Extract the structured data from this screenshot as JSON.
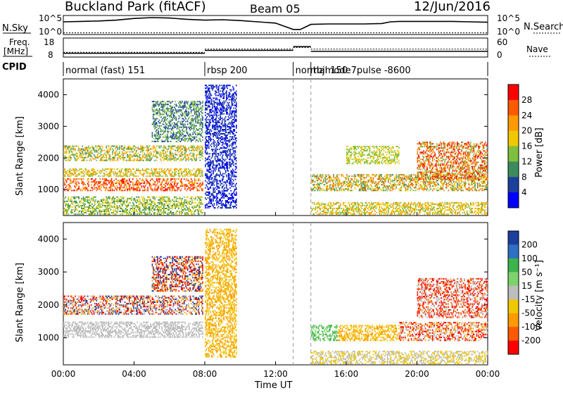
{
  "header": {
    "site": "Buckland Park (fitACF)",
    "beam": "Beam 05",
    "date": "12/Jun/2016"
  },
  "noise_panel": {
    "left_label": "N.Sky",
    "right_label": "N.Search",
    "left_ticks": [
      "10^5",
      "10^0"
    ],
    "right_ticks": [
      "10^5",
      "10^0"
    ],
    "nsky_series": [
      [
        0,
        30
      ],
      [
        1,
        31
      ],
      [
        2,
        32
      ],
      [
        3,
        34
      ],
      [
        4,
        38
      ],
      [
        5,
        40
      ],
      [
        6,
        39
      ],
      [
        7,
        36
      ],
      [
        8,
        34
      ],
      [
        9,
        35
      ],
      [
        10,
        33
      ],
      [
        11,
        30
      ],
      [
        12,
        27
      ],
      [
        13,
        12
      ],
      [
        13.4,
        12
      ],
      [
        14,
        24
      ],
      [
        15,
        25
      ],
      [
        16,
        25
      ],
      [
        17,
        25
      ],
      [
        18,
        26
      ],
      [
        18.5,
        30
      ],
      [
        19,
        31
      ],
      [
        20,
        31
      ],
      [
        21,
        31
      ],
      [
        22,
        31
      ],
      [
        23,
        30
      ],
      [
        24,
        29
      ]
    ],
    "nsearch_level": 4
  },
  "freq_panel": {
    "left_label_1": "Freq.",
    "left_label_2": "[MHz]",
    "right_label": "Nave",
    "left_ticks": [
      "18",
      "8"
    ],
    "right_ticks": [
      "60",
      "0"
    ],
    "freq_segments": [
      [
        0,
        8,
        10
      ],
      [
        8,
        13,
        11.5
      ],
      [
        13,
        14,
        13.5
      ],
      [
        14,
        24,
        11
      ]
    ],
    "nave_segments": [
      [
        0,
        8,
        15
      ],
      [
        8,
        13,
        25
      ],
      [
        13,
        14,
        30
      ],
      [
        14,
        24,
        25
      ]
    ]
  },
  "cpid": {
    "label": "CPID",
    "segments": [
      {
        "start": 0,
        "end": 8,
        "label": "normal (fast) 151"
      },
      {
        "start": 8,
        "end": 13,
        "label": "rbsp 200"
      },
      {
        "start": 13,
        "end": 14,
        "label": "normal 150"
      },
      {
        "start": 14,
        "end": 24,
        "label": "tbjmode7pulse -8600"
      }
    ]
  },
  "chart_data": [
    {
      "type": "heatmap",
      "name": "power",
      "ylabel": "Slant Range [km]",
      "xlabel": "Time UT",
      "ylim": [
        180,
        4500
      ],
      "xlim": [
        0,
        24
      ],
      "yticks": [
        1000,
        2000,
        3000,
        4000
      ],
      "colorbar": {
        "label": "Power [dB]",
        "ticks": [
          28,
          24,
          20,
          16,
          12,
          8,
          4
        ],
        "colors": [
          "#ff0000",
          "#ff5a00",
          "#ff9a00",
          "#f0c800",
          "#7fbf3f",
          "#3d8b5c",
          "#1c3f9e",
          "#0000ff"
        ]
      },
      "echo_regions": [
        {
          "t0": 0.0,
          "t1": 7.9,
          "r0": 950,
          "r1": 1350,
          "color_idx": [
            0,
            1,
            2
          ]
        },
        {
          "t0": 0.0,
          "t1": 7.9,
          "r0": 1400,
          "r1": 1650,
          "color_idx": [
            2,
            3,
            4
          ]
        },
        {
          "t0": 0.0,
          "t1": 7.9,
          "r0": 1900,
          "r1": 2400,
          "color_idx": [
            2,
            3,
            4,
            5
          ]
        },
        {
          "t0": 0.0,
          "t1": 7.9,
          "r0": 200,
          "r1": 800,
          "color_idx": [
            3,
            4,
            5
          ]
        },
        {
          "t0": 5.0,
          "t1": 7.9,
          "r0": 2500,
          "r1": 3800,
          "color_idx": [
            4,
            5,
            6
          ]
        },
        {
          "t0": 8.0,
          "t1": 9.8,
          "r0": 400,
          "r1": 4300,
          "color_idx": [
            6,
            7
          ]
        },
        {
          "t0": 14.0,
          "t1": 24.0,
          "r0": 950,
          "r1": 1500,
          "color_idx": [
            1,
            2,
            3,
            4,
            5
          ]
        },
        {
          "t0": 14.0,
          "t1": 24.0,
          "r0": 200,
          "r1": 600,
          "color_idx": [
            2,
            3,
            4
          ]
        },
        {
          "t0": 20.0,
          "t1": 24.0,
          "r0": 1300,
          "r1": 2500,
          "color_idx": [
            0,
            1,
            2,
            4
          ]
        },
        {
          "t0": 16.0,
          "t1": 19.0,
          "r0": 1800,
          "r1": 2400,
          "color_idx": [
            3,
            4
          ]
        }
      ]
    },
    {
      "type": "heatmap",
      "name": "velocity",
      "ylabel": "Slant Range [km]",
      "xlabel": "Time UT",
      "ylim": [
        180,
        4500
      ],
      "xlim": [
        0,
        24
      ],
      "yticks": [
        1000,
        2000,
        3000,
        4000
      ],
      "xticks": [
        "00:00",
        "04:00",
        "08:00",
        "12:00",
        "16:00",
        "20:00",
        "00:00"
      ],
      "colorbar": {
        "label": "Velocity [m s⁻¹]",
        "ticks": [
          200,
          100,
          50,
          15,
          -15,
          -50,
          -100,
          -200
        ],
        "colors": [
          "#1c3f9e",
          "#2f6fc4",
          "#3cb44b",
          "#7ed26b",
          "#bdbdbd",
          "#f0c800",
          "#ff9a00",
          "#ff5a00",
          "#ff0000"
        ]
      },
      "echo_regions": [
        {
          "t0": 0.0,
          "t1": 7.9,
          "r0": 1000,
          "r1": 1500,
          "color_idx": [
            4
          ]
        },
        {
          "t0": 0.0,
          "t1": 7.9,
          "r0": 1700,
          "r1": 2300,
          "color_idx": [
            0,
            4,
            6,
            8
          ]
        },
        {
          "t0": 5.0,
          "t1": 7.9,
          "r0": 2400,
          "r1": 3500,
          "color_idx": [
            0,
            6,
            8
          ]
        },
        {
          "t0": 8.0,
          "t1": 9.8,
          "r0": 400,
          "r1": 4300,
          "color_idx": [
            5,
            6
          ]
        },
        {
          "t0": 14.0,
          "t1": 15.5,
          "r0": 900,
          "r1": 1400,
          "color_idx": [
            2,
            3
          ]
        },
        {
          "t0": 15.5,
          "t1": 19.0,
          "r0": 900,
          "r1": 1400,
          "color_idx": [
            5,
            6
          ]
        },
        {
          "t0": 19.0,
          "t1": 24.0,
          "r0": 900,
          "r1": 1500,
          "color_idx": [
            4,
            6,
            8
          ]
        },
        {
          "t0": 20.0,
          "t1": 24.0,
          "r0": 1600,
          "r1": 2800,
          "color_idx": [
            4,
            7,
            8
          ]
        },
        {
          "t0": 14.0,
          "t1": 24.0,
          "r0": 200,
          "r1": 600,
          "color_idx": [
            4,
            5
          ]
        }
      ]
    }
  ]
}
